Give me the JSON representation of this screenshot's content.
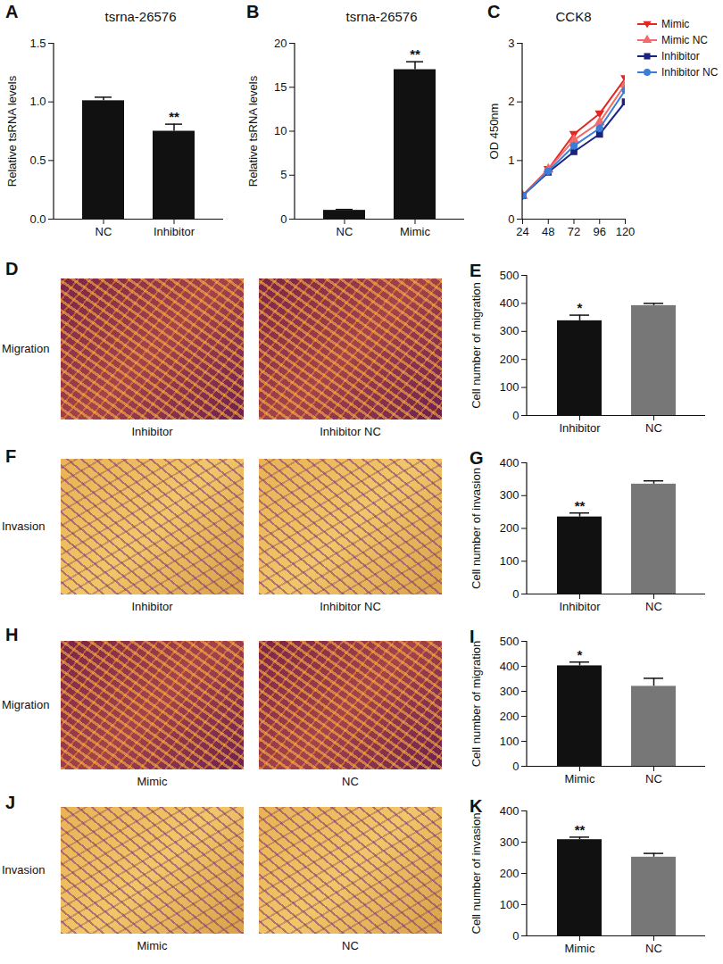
{
  "chart_data": [
    {
      "panel": "A",
      "type": "bar",
      "title": "tsrna-26576",
      "y_label": "Relative tsRNA levels",
      "categories": [
        "NC",
        "Inhibitor"
      ],
      "values": [
        1.01,
        0.75
      ],
      "errors": [
        0.03,
        0.06
      ],
      "colors": [
        "#111111",
        "#111111"
      ],
      "ylim": [
        0,
        1.5
      ],
      "yticks": [
        {
          "value": 0,
          "label": "0.0"
        },
        {
          "value": 0.5,
          "label": "0.5"
        },
        {
          "value": 1,
          "label": "1.0"
        },
        {
          "value": 1.5,
          "label": "1.5"
        }
      ],
      "annotations": [
        {
          "category": "Inhibitor",
          "text": "**"
        }
      ]
    },
    {
      "panel": "B",
      "type": "bar",
      "title": "tsrna-26576",
      "y_label": "Relative tsRNA levels",
      "categories": [
        "NC",
        "Mimic"
      ],
      "values": [
        1,
        17
      ],
      "errors": [
        0.1,
        0.9
      ],
      "colors": [
        "#111111",
        "#111111"
      ],
      "ylim": [
        0,
        20
      ],
      "yticks": [
        0,
        5,
        10,
        15,
        20
      ],
      "annotations": [
        {
          "category": "Mimic",
          "text": "**"
        }
      ]
    },
    {
      "panel": "C",
      "type": "line",
      "title": "CCK8",
      "y_label": "OD 450nm",
      "x": [
        24,
        48,
        72,
        96,
        120
      ],
      "xlim": [
        24,
        120
      ],
      "xticks": [
        24,
        48,
        72,
        96,
        120
      ],
      "ylim": [
        0,
        3
      ],
      "yticks": [
        0,
        1,
        2,
        3
      ],
      "legend": "right",
      "series": [
        {
          "name": "Mimic",
          "color": "#e3261f",
          "marker": "triangle-down",
          "values": [
            0.4,
            0.85,
            1.45,
            1.8,
            2.4
          ]
        },
        {
          "name": "Mimic NC",
          "color": "#f26b6b",
          "marker": "triangle",
          "values": [
            0.4,
            0.85,
            1.35,
            1.65,
            2.3
          ]
        },
        {
          "name": "Inhibitor",
          "color": "#1a237e",
          "marker": "square",
          "values": [
            0.4,
            0.8,
            1.15,
            1.45,
            2.0
          ]
        },
        {
          "name": "Inhibitor NC",
          "color": "#3b7dd8",
          "marker": "circle",
          "values": [
            0.4,
            0.82,
            1.25,
            1.55,
            2.2
          ]
        }
      ]
    },
    {
      "panel": "E",
      "type": "bar",
      "y_label": "Cell number of migration",
      "categories": [
        "Inhibitor",
        "NC"
      ],
      "values": [
        338,
        392
      ],
      "errors": [
        20,
        8
      ],
      "colors": [
        "#111111",
        "#777777"
      ],
      "ylim": [
        0,
        500
      ],
      "yticks": [
        0,
        100,
        200,
        300,
        400,
        500
      ],
      "annotations": [
        {
          "category": "Inhibitor",
          "text": "*"
        }
      ]
    },
    {
      "panel": "G",
      "type": "bar",
      "y_label": "Cell number of invasion",
      "categories": [
        "Inhibitor",
        "NC"
      ],
      "values": [
        235,
        335
      ],
      "errors": [
        12,
        10
      ],
      "colors": [
        "#111111",
        "#777777"
      ],
      "ylim": [
        0,
        400
      ],
      "yticks": [
        0,
        100,
        200,
        300,
        400
      ],
      "annotations": [
        {
          "category": "Inhibitor",
          "text": "**"
        }
      ]
    },
    {
      "panel": "I",
      "type": "bar",
      "y_label": "Cell number of migration",
      "categories": [
        "Mimic",
        "NC"
      ],
      "values": [
        402,
        320
      ],
      "errors": [
        15,
        32
      ],
      "colors": [
        "#111111",
        "#777777"
      ],
      "ylim": [
        0,
        500
      ],
      "yticks": [
        0,
        100,
        200,
        300,
        400,
        500
      ],
      "annotations": [
        {
          "category": "Mimic",
          "text": "*"
        }
      ]
    },
    {
      "panel": "K",
      "type": "bar",
      "y_label": "Cell number of invasion",
      "categories": [
        "Mimic",
        "NC"
      ],
      "values": [
        308,
        252
      ],
      "errors": [
        8,
        12
      ],
      "colors": [
        "#111111",
        "#777777"
      ],
      "ylim": [
        0,
        400
      ],
      "yticks": [
        0,
        100,
        200,
        300,
        400
      ],
      "annotations": [
        {
          "category": "Mimic",
          "text": "**"
        }
      ]
    }
  ],
  "image_panels": [
    {
      "panel": "D",
      "row_label": "Migration",
      "captions": [
        "Inhibitor",
        "Inhibitor NC"
      ]
    },
    {
      "panel": "F",
      "row_label": "Invasion",
      "captions": [
        "Inhibitor",
        "Inhibitor NC"
      ]
    },
    {
      "panel": "H",
      "row_label": "Migration",
      "captions": [
        "Mimic",
        "NC"
      ]
    },
    {
      "panel": "J",
      "row_label": "Invasion",
      "captions": [
        "Mimic",
        "NC"
      ]
    }
  ]
}
